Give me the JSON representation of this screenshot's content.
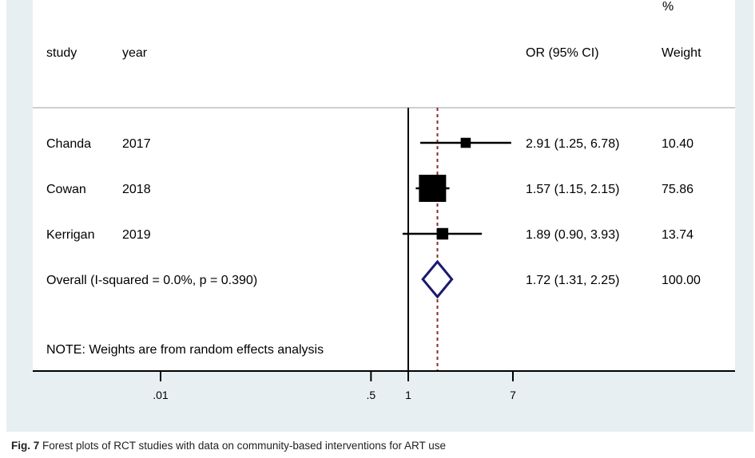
{
  "chart_data": {
    "type": "forest",
    "header": {
      "study": "study",
      "year": "year",
      "or": "OR (95% CI)",
      "weight_top": "%",
      "weight": "Weight"
    },
    "rows": [
      {
        "study": "Chanda",
        "year": "2017",
        "or": 2.91,
        "lo": 1.25,
        "hi": 6.78,
        "or_text": "2.91 (1.25, 6.78)",
        "weight": 10.4,
        "weight_text": "10.40"
      },
      {
        "study": "Cowan",
        "year": "2018",
        "or": 1.57,
        "lo": 1.15,
        "hi": 2.15,
        "or_text": "1.57 (1.15, 2.15)",
        "weight": 75.86,
        "weight_text": "75.86"
      },
      {
        "study": "Kerrigan",
        "year": "2019",
        "or": 1.89,
        "lo": 0.9,
        "hi": 3.93,
        "or_text": "1.89 (0.90, 3.93)",
        "weight": 13.74,
        "weight_text": "13.74"
      }
    ],
    "overall": {
      "label": "Overall  (I-squared = 0.0%, p = 0.390)",
      "or": 1.72,
      "lo": 1.31,
      "hi": 2.25,
      "or_text": "1.72 (1.31, 2.25)",
      "weight_text": "100.00"
    },
    "note": "NOTE: Weights are from random effects analysis",
    "x_scale": "log",
    "null_line": 1,
    "xticks": [
      {
        "value": 0.01,
        "label": ".01"
      },
      {
        "value": 0.5,
        "label": ".5"
      },
      {
        "value": 1,
        "label": "1"
      },
      {
        "value": 7,
        "label": "7"
      }
    ],
    "colors": {
      "marker": "#000000",
      "diamond": "#1a1a6e",
      "overall_line": "#8b2a2a",
      "background": "#e8eff3",
      "panel": "#ffffff"
    }
  },
  "caption": {
    "label": "Fig. 7",
    "text": " Forest plots of RCT studies with data on community-based interventions for ART use"
  }
}
